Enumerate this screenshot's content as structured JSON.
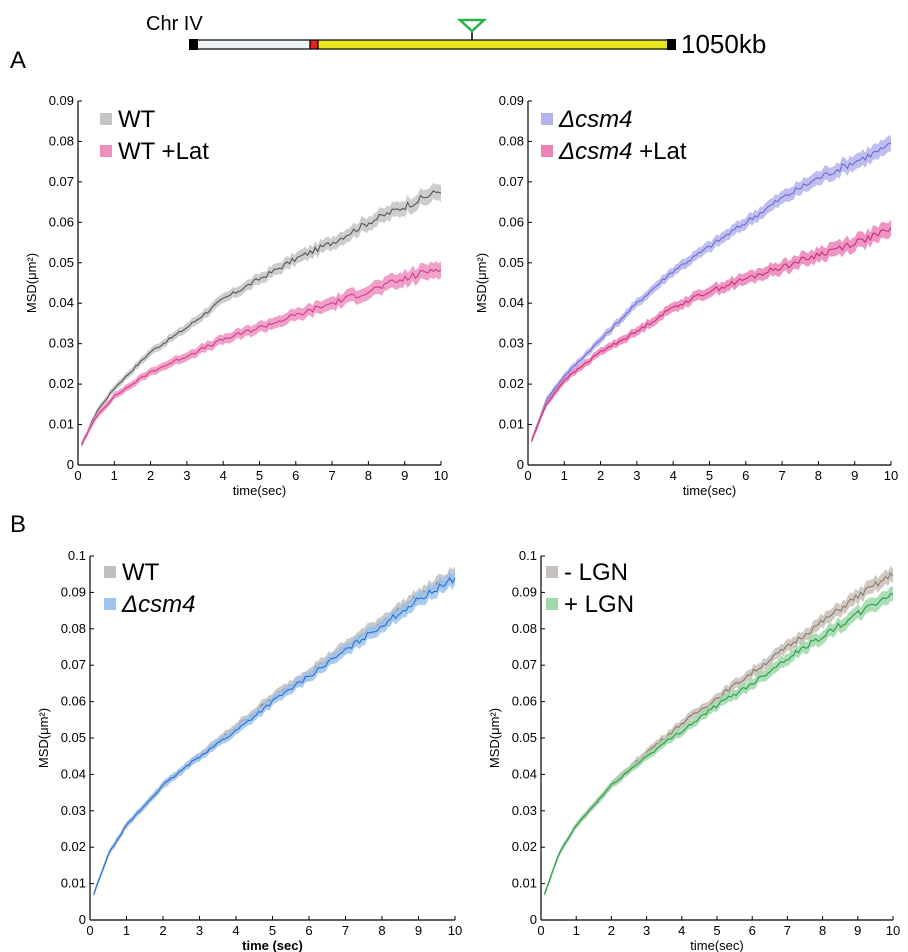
{
  "panel_labels": {
    "a": "A",
    "b": "B"
  },
  "chromosome": {
    "name": "Chr IV",
    "length_label": "1050kb"
  },
  "chart_data": [
    {
      "id": "a-left",
      "type": "line",
      "xlabel": "time(sec)",
      "ylabel": "MSD(μm²)",
      "xlim": [
        0,
        10
      ],
      "ylim": [
        0,
        0.09
      ],
      "x_ticks": [
        "0",
        "1",
        "2",
        "3",
        "4",
        "5",
        "6",
        "7",
        "8",
        "9",
        "10"
      ],
      "y_ticks": [
        "0",
        "0.01",
        "0.02",
        "0.03",
        "0.04",
        "0.05",
        "0.06",
        "0.07",
        "0.08",
        "0.09"
      ],
      "legend_position": "top-left",
      "grid": false,
      "series": [
        {
          "name": "WT",
          "color": "#555555",
          "band": "#c4c4c4",
          "x": [
            0.1,
            0.5,
            1,
            2,
            3,
            4,
            5,
            6,
            7,
            8,
            9,
            10
          ],
          "y": [
            0.005,
            0.013,
            0.019,
            0.028,
            0.034,
            0.041,
            0.046,
            0.051,
            0.055,
            0.06,
            0.064,
            0.068
          ]
        },
        {
          "name": "WT +Lat",
          "color": "#d23c8a",
          "band": "#ef8fbf",
          "x": [
            0.1,
            0.5,
            1,
            2,
            3,
            4,
            5,
            6,
            7,
            8,
            9,
            10
          ],
          "y": [
            0.005,
            0.012,
            0.017,
            0.023,
            0.027,
            0.031,
            0.034,
            0.037,
            0.04,
            0.043,
            0.046,
            0.049
          ]
        }
      ]
    },
    {
      "id": "a-right",
      "type": "line",
      "xlabel": "time(sec)",
      "ylabel": "MSD(μm²)",
      "xlim": [
        0,
        10
      ],
      "ylim": [
        0,
        0.09
      ],
      "x_ticks": [
        "0",
        "1",
        "2",
        "3",
        "4",
        "5",
        "6",
        "7",
        "8",
        "9",
        "10"
      ],
      "y_ticks": [
        "0",
        "0.01",
        "0.02",
        "0.03",
        "0.04",
        "0.05",
        "0.06",
        "0.07",
        "0.08",
        "0.09"
      ],
      "legend_position": "top-left",
      "grid": false,
      "series": [
        {
          "name": "Δcsm4",
          "color": "#6a6ad8",
          "band": "#b4b4ec",
          "x": [
            0.1,
            0.5,
            1,
            2,
            3,
            4,
            5,
            6,
            7,
            8,
            9,
            10
          ],
          "y": [
            0.006,
            0.016,
            0.022,
            0.031,
            0.04,
            0.048,
            0.054,
            0.06,
            0.066,
            0.071,
            0.075,
            0.079
          ]
        },
        {
          "name": "Δcsm4 +Lat",
          "color": "#c8307a",
          "band": "#ec82b8",
          "x": [
            0.1,
            0.5,
            1,
            2,
            3,
            4,
            5,
            6,
            7,
            8,
            9,
            10
          ],
          "y": [
            0.006,
            0.015,
            0.021,
            0.028,
            0.033,
            0.039,
            0.043,
            0.046,
            0.049,
            0.052,
            0.055,
            0.058
          ]
        }
      ]
    },
    {
      "id": "b-left",
      "type": "line",
      "xlabel": "time (sec)",
      "ylabel": "MSD(μm²)",
      "xlim": [
        0,
        10
      ],
      "ylim": [
        0,
        0.1
      ],
      "x_ticks": [
        "0",
        "1",
        "2",
        "3",
        "4",
        "5",
        "6",
        "7",
        "8",
        "9",
        "10"
      ],
      "y_ticks": [
        "0",
        "0.01",
        "0.02",
        "0.03",
        "0.04",
        "0.05",
        "0.06",
        "0.07",
        "0.08",
        "0.09",
        "0.1"
      ],
      "legend_position": "top-left",
      "grid": false,
      "series": [
        {
          "name": "WT",
          "color": "#7a7a7a",
          "band": "#c0c0c0",
          "x": [
            0.1,
            0.5,
            1,
            2,
            3,
            4,
            5,
            6,
            7,
            8,
            9,
            10
          ],
          "y": [
            0.007,
            0.018,
            0.026,
            0.037,
            0.045,
            0.053,
            0.061,
            0.068,
            0.075,
            0.082,
            0.089,
            0.095
          ]
        },
        {
          "name": "Δcsm4",
          "color": "#2a6fd6",
          "band": "#9cc4ef",
          "x": [
            0.1,
            0.5,
            1,
            2,
            3,
            4,
            5,
            6,
            7,
            8,
            9,
            10
          ],
          "y": [
            0.007,
            0.018,
            0.026,
            0.037,
            0.045,
            0.052,
            0.06,
            0.067,
            0.074,
            0.081,
            0.088,
            0.094
          ]
        }
      ]
    },
    {
      "id": "b-right",
      "type": "line",
      "xlabel": "time(sec)",
      "ylabel": "MSD(μm²)",
      "xlim": [
        0,
        10
      ],
      "ylim": [
        0,
        0.1
      ],
      "x_ticks": [
        "0",
        "1",
        "2",
        "3",
        "4",
        "5",
        "6",
        "7",
        "8",
        "9",
        "10"
      ],
      "y_ticks": [
        "0",
        "0.01",
        "0.02",
        "0.03",
        "0.04",
        "0.05",
        "0.06",
        "0.07",
        "0.08",
        "0.09",
        "0.1"
      ],
      "legend_position": "top-left",
      "grid": false,
      "series": [
        {
          "name": "- LGN",
          "color": "#8a7a6a",
          "band": "#c8c0b8",
          "x": [
            0.1,
            0.5,
            1,
            2,
            3,
            4,
            5,
            6,
            7,
            8,
            9,
            10
          ],
          "y": [
            0.007,
            0.018,
            0.026,
            0.037,
            0.046,
            0.054,
            0.061,
            0.068,
            0.075,
            0.082,
            0.089,
            0.095
          ]
        },
        {
          "name": "+ LGN",
          "color": "#2e9a4e",
          "band": "#9ed8a8",
          "x": [
            0.1,
            0.5,
            1,
            2,
            3,
            4,
            5,
            6,
            7,
            8,
            9,
            10
          ],
          "y": [
            0.007,
            0.018,
            0.026,
            0.037,
            0.045,
            0.052,
            0.059,
            0.065,
            0.072,
            0.078,
            0.084,
            0.09
          ]
        }
      ]
    }
  ]
}
